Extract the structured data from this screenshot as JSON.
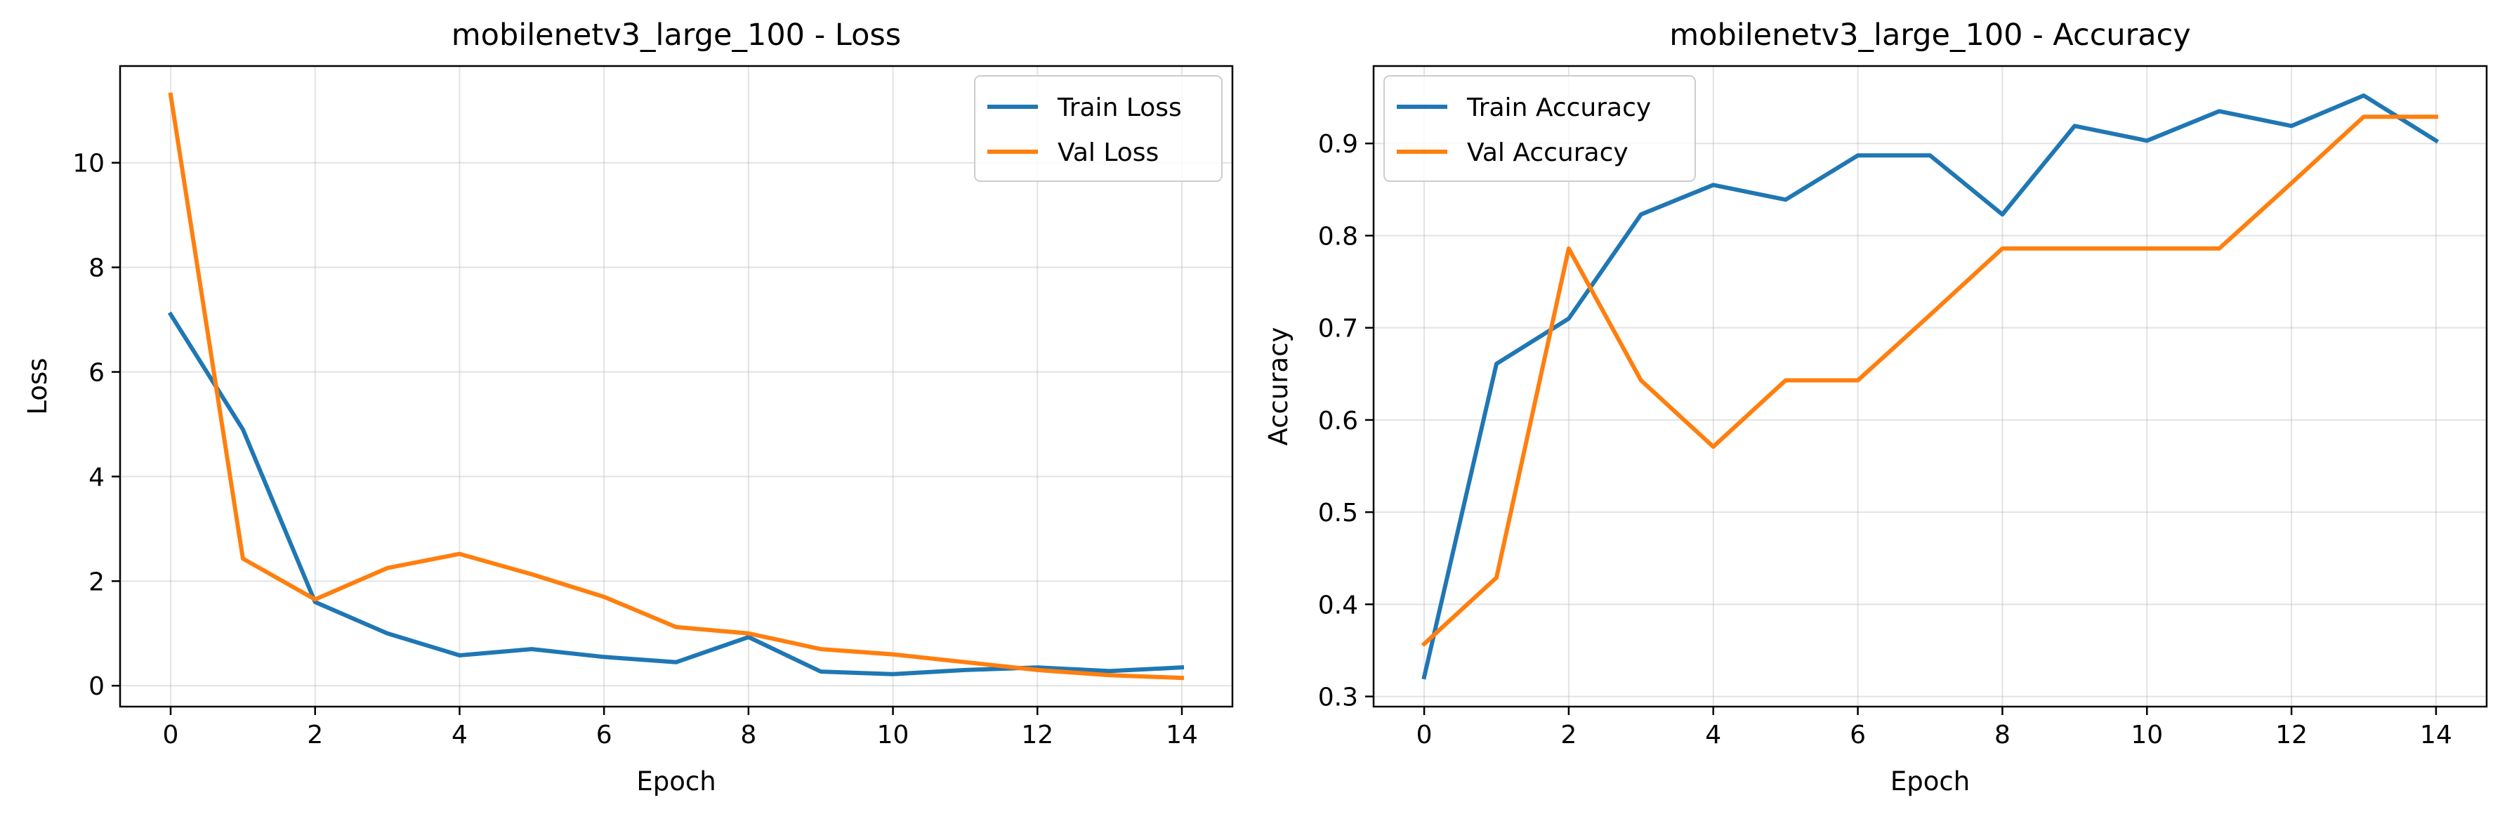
{
  "colors": {
    "train": "#1f77b4",
    "val": "#ff7f0e",
    "grid": "#b0b0b0",
    "axis": "#000000"
  },
  "chart_data": [
    {
      "type": "line",
      "title": "mobilenetv3_large_100 - Loss",
      "xlabel": "Epoch",
      "ylabel": "Loss",
      "xlim": [
        -0.7,
        14.7
      ],
      "ylim": [
        -0.4,
        11.85
      ],
      "grid": true,
      "legend_position": "top-right",
      "xticks": [
        0,
        2,
        4,
        6,
        8,
        10,
        12,
        14
      ],
      "yticks": [
        0,
        2,
        4,
        6,
        8,
        10
      ],
      "x": [
        0,
        1,
        2,
        3,
        4,
        5,
        6,
        7,
        8,
        9,
        10,
        11,
        12,
        13,
        14
      ],
      "series": [
        {
          "name": "Train Loss",
          "color": "#1f77b4",
          "values": [
            7.1,
            4.9,
            1.6,
            1.0,
            0.58,
            0.7,
            0.55,
            0.45,
            0.93,
            0.27,
            0.22,
            0.3,
            0.35,
            0.28,
            0.35
          ]
        },
        {
          "name": "Val Loss",
          "color": "#ff7f0e",
          "values": [
            11.3,
            2.43,
            1.65,
            2.25,
            2.52,
            2.13,
            1.7,
            1.12,
            1.0,
            0.7,
            0.6,
            0.45,
            0.3,
            0.2,
            0.15
          ]
        }
      ]
    },
    {
      "type": "line",
      "title": "mobilenetv3_large_100 - Accuracy",
      "xlabel": "Epoch",
      "ylabel": "Accuracy",
      "xlim": [
        -0.7,
        14.7
      ],
      "ylim": [
        0.289,
        0.984
      ],
      "grid": true,
      "legend_position": "top-left",
      "xticks": [
        0,
        2,
        4,
        6,
        8,
        10,
        12,
        14
      ],
      "yticks": [
        0.3,
        0.4,
        0.5,
        0.6,
        0.7,
        0.8,
        0.9
      ],
      "x": [
        0,
        1,
        2,
        3,
        4,
        5,
        6,
        7,
        8,
        9,
        10,
        11,
        12,
        13,
        14
      ],
      "series": [
        {
          "name": "Train Accuracy",
          "color": "#1f77b4",
          "values": [
            0.321,
            0.661,
            0.71,
            0.823,
            0.855,
            0.839,
            0.887,
            0.887,
            0.823,
            0.919,
            0.903,
            0.935,
            0.919,
            0.952,
            0.903
          ]
        },
        {
          "name": "Val Accuracy",
          "color": "#ff7f0e",
          "values": [
            0.357,
            0.429,
            0.786,
            0.643,
            0.571,
            0.643,
            0.643,
            0.714,
            0.786,
            0.786,
            0.786,
            0.786,
            0.857,
            0.929,
            0.929
          ]
        }
      ]
    }
  ]
}
